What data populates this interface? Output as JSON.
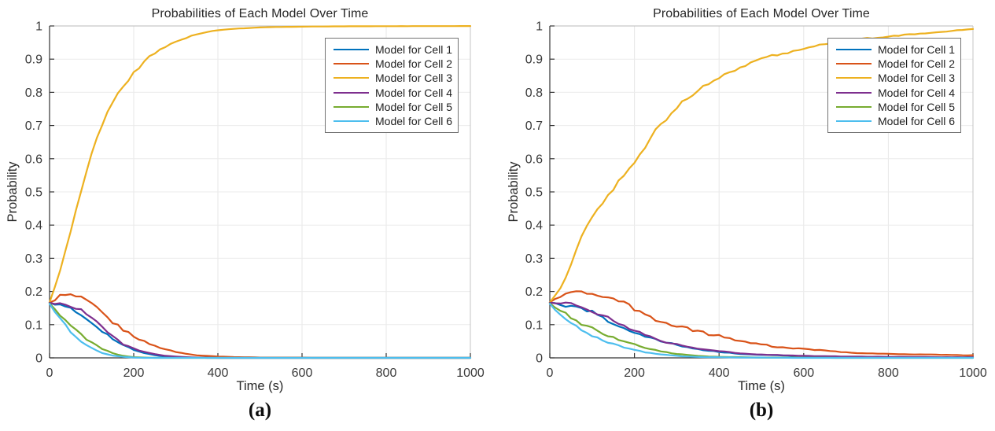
{
  "figure": {
    "captions": [
      "(a)",
      "(b)"
    ]
  },
  "chart_data": [
    {
      "type": "line",
      "title": "Probabilities of Each Model Over Time",
      "xlabel": "Time (s)",
      "ylabel": "Probability",
      "xlim": [
        0,
        1000
      ],
      "ylim": [
        0,
        1
      ],
      "xticks": [
        0,
        200,
        400,
        600,
        800,
        1000
      ],
      "xtick_labels": [
        "0",
        "200",
        "400",
        "600",
        "800",
        "1000"
      ],
      "yticks": [
        0,
        0.1,
        0.2,
        0.3,
        0.4,
        0.5,
        0.6,
        0.7,
        0.8,
        0.9,
        1
      ],
      "ytick_labels": [
        "0",
        "0.1",
        "0.2",
        "0.3",
        "0.4",
        "0.5",
        "0.6",
        "0.7",
        "0.8",
        "0.9",
        "1"
      ],
      "grid": true,
      "legend_position": "top-right",
      "x": [
        0,
        25,
        50,
        75,
        100,
        125,
        150,
        175,
        200,
        225,
        250,
        275,
        300,
        325,
        350,
        375,
        400,
        425,
        450,
        475,
        500,
        525,
        550,
        575,
        600,
        625,
        650,
        675,
        700,
        725,
        750,
        775,
        800,
        825,
        850,
        875,
        900,
        925,
        950,
        975,
        1000
      ],
      "series": [
        {
          "name": "Model for Cell 1",
          "color": "#0072BD",
          "values": [
            0.166,
            0.158,
            0.147,
            0.128,
            0.108,
            0.082,
            0.057,
            0.038,
            0.024,
            0.014,
            0.008,
            0.004,
            0.002,
            0.001,
            0.001,
            0,
            0,
            0,
            0,
            0,
            0,
            0,
            0,
            0,
            0,
            0,
            0,
            0,
            0,
            0,
            0,
            0,
            0,
            0,
            0,
            0,
            0,
            0,
            0,
            0,
            0
          ]
        },
        {
          "name": "Model for Cell 2",
          "color": "#D95319",
          "values": [
            0.167,
            0.187,
            0.189,
            0.18,
            0.162,
            0.135,
            0.107,
            0.085,
            0.066,
            0.049,
            0.036,
            0.026,
            0.018,
            0.012,
            0.008,
            0.006,
            0.004,
            0.003,
            0.002,
            0.002,
            0.001,
            0.001,
            0.001,
            0.001,
            0.001,
            0,
            0,
            0,
            0,
            0,
            0,
            0,
            0,
            0,
            0,
            0,
            0,
            0,
            0,
            0,
            0
          ]
        },
        {
          "name": "Model for Cell 3",
          "color": "#EDB120",
          "values": [
            0.167,
            0.26,
            0.38,
            0.5,
            0.615,
            0.705,
            0.77,
            0.82,
            0.86,
            0.893,
            0.917,
            0.937,
            0.953,
            0.965,
            0.975,
            0.982,
            0.987,
            0.99,
            0.9925,
            0.994,
            0.9955,
            0.9965,
            0.997,
            0.9975,
            0.998,
            0.9982,
            0.9985,
            0.9987,
            0.9989,
            0.999,
            0.9991,
            0.9992,
            0.9993,
            0.9994,
            0.9994,
            0.9995,
            0.9995,
            0.9996,
            0.9996,
            0.9997,
            0.9997
          ]
        },
        {
          "name": "Model for Cell 4",
          "color": "#7E2F8E",
          "values": [
            0.166,
            0.162,
            0.158,
            0.145,
            0.122,
            0.094,
            0.063,
            0.042,
            0.028,
            0.018,
            0.011,
            0.006,
            0.004,
            0.002,
            0.001,
            0.001,
            0,
            0,
            0,
            0,
            0,
            0,
            0,
            0,
            0,
            0,
            0,
            0,
            0,
            0,
            0,
            0,
            0,
            0,
            0,
            0,
            0,
            0,
            0,
            0,
            0
          ]
        },
        {
          "name": "Model for Cell 5",
          "color": "#77AC30",
          "values": [
            0.164,
            0.131,
            0.099,
            0.069,
            0.046,
            0.027,
            0.014,
            0.006,
            0.002,
            0.001,
            0,
            0,
            0,
            0,
            0,
            0,
            0,
            0,
            0,
            0,
            0,
            0,
            0,
            0,
            0,
            0,
            0,
            0,
            0,
            0,
            0,
            0,
            0,
            0,
            0,
            0,
            0,
            0,
            0,
            0,
            0
          ]
        },
        {
          "name": "Model for Cell 6",
          "color": "#4DBEEE",
          "values": [
            0.163,
            0.119,
            0.081,
            0.051,
            0.029,
            0.015,
            0.007,
            0.003,
            0.001,
            0,
            0,
            0,
            0,
            0,
            0,
            0,
            0,
            0,
            0,
            0,
            0,
            0,
            0,
            0,
            0,
            0,
            0,
            0,
            0,
            0,
            0,
            0,
            0,
            0,
            0,
            0,
            0,
            0,
            0,
            0,
            0
          ]
        }
      ]
    },
    {
      "type": "line",
      "title": "Probabilities of Each Model Over Time",
      "xlabel": "Time (s)",
      "ylabel": "Probability",
      "xlim": [
        0,
        1000
      ],
      "ylim": [
        0,
        1
      ],
      "xticks": [
        0,
        200,
        400,
        600,
        800,
        1000
      ],
      "xtick_labels": [
        "0",
        "200",
        "400",
        "600",
        "800",
        "1000"
      ],
      "yticks": [
        0,
        0.1,
        0.2,
        0.3,
        0.4,
        0.5,
        0.6,
        0.7,
        0.8,
        0.9,
        1
      ],
      "ytick_labels": [
        "0",
        "0.1",
        "0.2",
        "0.3",
        "0.4",
        "0.5",
        "0.6",
        "0.7",
        "0.8",
        "0.9",
        "1"
      ],
      "grid": true,
      "legend_position": "top-right",
      "x": [
        0,
        25,
        50,
        75,
        100,
        125,
        150,
        175,
        200,
        225,
        250,
        275,
        300,
        325,
        350,
        375,
        400,
        425,
        450,
        475,
        500,
        525,
        550,
        575,
        600,
        625,
        650,
        675,
        700,
        725,
        750,
        775,
        800,
        825,
        850,
        875,
        900,
        925,
        950,
        975,
        1000
      ],
      "series": [
        {
          "name": "Model for Cell 1",
          "color": "#0072BD",
          "values": [
            0.166,
            0.158,
            0.152,
            0.148,
            0.138,
            0.12,
            0.103,
            0.09,
            0.077,
            0.065,
            0.055,
            0.046,
            0.039,
            0.032,
            0.026,
            0.022,
            0.018,
            0.015,
            0.012,
            0.01,
            0.009,
            0.008,
            0.007,
            0.006,
            0.005,
            0.0045,
            0.004,
            0.0035,
            0.003,
            0.003,
            0.0025,
            0.0025,
            0.002,
            0.002,
            0.002,
            0.0015,
            0.0015,
            0.001,
            0.001,
            0.001,
            0.001
          ]
        },
        {
          "name": "Model for Cell 2",
          "color": "#D95319",
          "values": [
            0.167,
            0.183,
            0.197,
            0.198,
            0.192,
            0.186,
            0.176,
            0.172,
            0.146,
            0.131,
            0.116,
            0.106,
            0.096,
            0.088,
            0.081,
            0.072,
            0.066,
            0.058,
            0.051,
            0.046,
            0.041,
            0.035,
            0.032,
            0.029,
            0.027,
            0.024,
            0.022,
            0.019,
            0.017,
            0.015,
            0.014,
            0.013,
            0.012,
            0.011,
            0.011,
            0.01,
            0.01,
            0.009,
            0.009,
            0.008,
            0.008
          ]
        },
        {
          "name": "Model for Cell 3",
          "color": "#EDB120",
          "values": [
            0.167,
            0.21,
            0.28,
            0.37,
            0.425,
            0.47,
            0.51,
            0.55,
            0.59,
            0.635,
            0.685,
            0.72,
            0.755,
            0.785,
            0.805,
            0.825,
            0.845,
            0.862,
            0.875,
            0.887,
            0.898,
            0.908,
            0.917,
            0.925,
            0.932,
            0.938,
            0.944,
            0.949,
            0.954,
            0.958,
            0.962,
            0.965,
            0.968,
            0.971,
            0.974,
            0.976,
            0.979,
            0.982,
            0.985,
            0.988,
            0.991
          ]
        },
        {
          "name": "Model for Cell 4",
          "color": "#7E2F8E",
          "values": [
            0.166,
            0.163,
            0.161,
            0.156,
            0.143,
            0.127,
            0.112,
            0.097,
            0.082,
            0.068,
            0.057,
            0.048,
            0.04,
            0.033,
            0.028,
            0.023,
            0.02,
            0.017,
            0.014,
            0.012,
            0.01,
            0.009,
            0.008,
            0.007,
            0.006,
            0.0055,
            0.005,
            0.0045,
            0.004,
            0.004,
            0.0035,
            0.0035,
            0.003,
            0.003,
            0.003,
            0.0025,
            0.0025,
            0.002,
            0.002,
            0.002,
            0.002
          ]
        },
        {
          "name": "Model for Cell 5",
          "color": "#77AC30",
          "values": [
            0.164,
            0.142,
            0.121,
            0.104,
            0.089,
            0.074,
            0.061,
            0.05,
            0.04,
            0.031,
            0.023,
            0.017,
            0.012,
            0.009,
            0.006,
            0.004,
            0.003,
            0.0025,
            0.002,
            0.0015,
            0.001,
            0.001,
            0.001,
            0.001,
            0.0005,
            0.0005,
            0.0005,
            0,
            0,
            0,
            0,
            0,
            0,
            0,
            0,
            0,
            0,
            0,
            0,
            0,
            0
          ]
        },
        {
          "name": "Model for Cell 6",
          "color": "#4DBEEE",
          "values": [
            0.163,
            0.128,
            0.104,
            0.085,
            0.068,
            0.052,
            0.042,
            0.032,
            0.024,
            0.017,
            0.012,
            0.009,
            0.006,
            0.004,
            0.003,
            0.002,
            0.002,
            0.0015,
            0.001,
            0.001,
            0.001,
            0.0005,
            0.0005,
            0,
            0,
            0,
            0,
            0,
            0,
            0,
            0,
            0,
            0,
            0,
            0,
            0,
            0,
            0,
            0,
            0,
            0
          ]
        }
      ]
    }
  ]
}
